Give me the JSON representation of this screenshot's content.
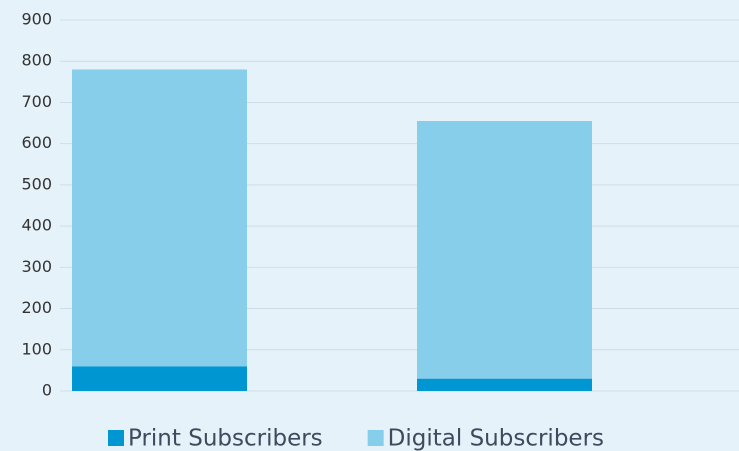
{
  "chart_data": {
    "type": "stacked_bar",
    "categories": [
      null,
      null
    ],
    "series": [
      {
        "name": "Print Subscribers",
        "color": "#0096d1",
        "values": [
          60,
          30
        ]
      },
      {
        "name": "Digital Subscribers",
        "color": "#87ceeb",
        "values": [
          720,
          625
        ]
      }
    ],
    "ylim": [
      0,
      900
    ],
    "yticks": [
      0,
      100,
      200,
      300,
      400,
      500,
      600,
      700,
      800,
      900
    ],
    "grid": true,
    "legend": "bottom"
  }
}
